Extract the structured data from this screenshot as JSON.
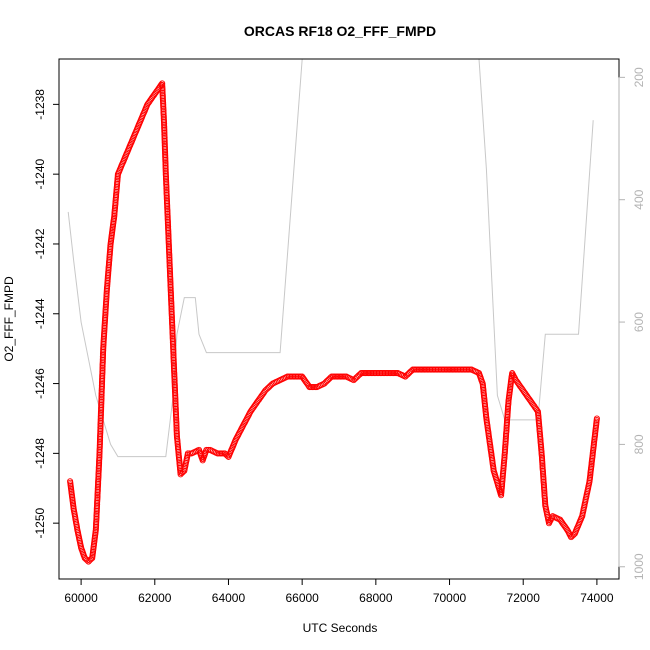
{
  "chart_data": {
    "type": "scatter",
    "title": "ORCAS RF18 O2_FFF_FMPD",
    "xlabel": "UTC Seconds",
    "ylabel": "O2_FFF_FMPD",
    "xlim": [
      59400,
      74600
    ],
    "ylim": [
      -1251.6,
      -1236.7
    ],
    "x_ticks": [
      60000,
      62000,
      64000,
      66000,
      68000,
      70000,
      72000,
      74000
    ],
    "x_tick_labels": [
      "60000",
      "62000",
      "64000",
      "66000",
      "68000",
      "70000",
      "72000",
      "74000"
    ],
    "y_ticks": [
      -1250,
      -1248,
      -1246,
      -1244,
      -1242,
      -1240,
      -1238
    ],
    "y_tick_labels": [
      "-1250",
      "-1248",
      "-1246",
      "-1244",
      "-1242",
      "-1240",
      "-1238"
    ],
    "y2_lim": [
      1020,
      170
    ],
    "y2_ticks": [
      200,
      400,
      600,
      800,
      1000
    ],
    "y2_tick_labels": [
      "200",
      "400",
      "600",
      "800",
      "1000"
    ],
    "series": [
      {
        "kind": "points",
        "color": "#ff0000",
        "marker": "open-circle",
        "x": [
          59700,
          59800,
          59900,
          60000,
          60100,
          60200,
          60300,
          60400,
          60500,
          60600,
          60700,
          60800,
          60900,
          61000,
          61200,
          61400,
          61600,
          61800,
          62000,
          62200,
          62250,
          62300,
          62400,
          62500,
          62600,
          62700,
          62800,
          62900,
          63000,
          63200,
          63300,
          63400,
          63500,
          63700,
          63900,
          64000,
          64200,
          64400,
          64600,
          64800,
          65000,
          65200,
          65400,
          65600,
          65800,
          66000,
          66200,
          66400,
          66600,
          66800,
          67000,
          67200,
          67400,
          67600,
          67800,
          68000,
          68200,
          68400,
          68600,
          68800,
          69000,
          69200,
          69400,
          69600,
          69800,
          70000,
          70200,
          70400,
          70600,
          70800,
          70900,
          71000,
          71200,
          71400,
          71500,
          71600,
          71700,
          71800,
          72000,
          72200,
          72400,
          72500,
          72600,
          72700,
          72800,
          73000,
          73200,
          73300,
          73400,
          73600,
          73800,
          74000
        ],
        "y": [
          -1248.8,
          -1249.6,
          -1250.2,
          -1250.7,
          -1251.0,
          -1251.1,
          -1251.0,
          -1250.2,
          -1248.0,
          -1245.0,
          -1243.3,
          -1242.0,
          -1241.2,
          -1240.0,
          -1239.5,
          -1239.0,
          -1238.5,
          -1238.0,
          -1237.7,
          -1237.4,
          -1238.5,
          -1240.0,
          -1242.5,
          -1245.0,
          -1247.5,
          -1248.6,
          -1248.5,
          -1248.0,
          -1248.0,
          -1247.9,
          -1248.2,
          -1247.9,
          -1247.9,
          -1248.0,
          -1248.0,
          -1248.1,
          -1247.6,
          -1247.2,
          -1246.8,
          -1246.5,
          -1246.2,
          -1246.0,
          -1245.9,
          -1245.8,
          -1245.8,
          -1245.8,
          -1246.1,
          -1246.1,
          -1246.0,
          -1245.8,
          -1245.8,
          -1245.8,
          -1245.9,
          -1245.7,
          -1245.7,
          -1245.7,
          -1245.7,
          -1245.7,
          -1245.7,
          -1245.8,
          -1245.6,
          -1245.6,
          -1245.6,
          -1245.6,
          -1245.6,
          -1245.6,
          -1245.6,
          -1245.6,
          -1245.6,
          -1245.7,
          -1246.0,
          -1247.0,
          -1248.5,
          -1249.2,
          -1248.0,
          -1246.5,
          -1245.7,
          -1245.9,
          -1246.2,
          -1246.5,
          -1246.8,
          -1248.0,
          -1249.5,
          -1250.0,
          -1249.8,
          -1249.9,
          -1250.2,
          -1250.4,
          -1250.3,
          -1249.8,
          -1248.8,
          -1247.0
        ]
      },
      {
        "kind": "line",
        "color": "#c8c8c8",
        "axis": "right",
        "x": [
          59650,
          59800,
          60000,
          60400,
          60800,
          61000,
          61500,
          62000,
          62300,
          62500,
          62600,
          62800,
          62850,
          63100,
          63200,
          63400,
          63600,
          63800,
          64000,
          65000,
          65400,
          66000,
          66500,
          66550,
          66900,
          66950,
          67300,
          67600,
          67700,
          67750,
          67800,
          67900,
          68100,
          68200,
          68300,
          68400,
          68500,
          68600,
          68700,
          68750,
          69000,
          69200,
          69400,
          69800,
          70000,
          70200,
          70400,
          70800,
          71000,
          71300,
          71500,
          71700,
          72000,
          72400,
          72600,
          72700,
          73000,
          73300,
          73500,
          73900
        ],
        "y": [
          420,
          500,
          600,
          720,
          800,
          820,
          820,
          820,
          820,
          720,
          620,
          560,
          560,
          560,
          620,
          650,
          650,
          650,
          650,
          650,
          650,
          120,
          120,
          150,
          150,
          120,
          120,
          120,
          150,
          150,
          150,
          120,
          120,
          120,
          120,
          120,
          120,
          150,
          150,
          120,
          120,
          120,
          120,
          120,
          120,
          120,
          120,
          120,
          350,
          720,
          760,
          760,
          760,
          760,
          620,
          620,
          620,
          620,
          620,
          270
        ]
      }
    ]
  }
}
